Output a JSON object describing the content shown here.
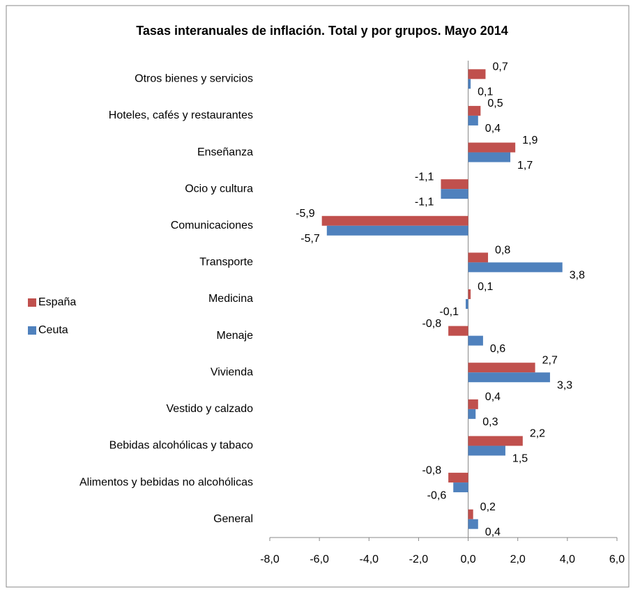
{
  "chart_data": {
    "type": "hbar",
    "title": "Tasas interanuales de inflación. Total y por grupos. Mayo 2014",
    "categories": [
      "Otros bienes y servicios",
      "Hoteles, cafés y restaurantes",
      "Enseñanza",
      "Ocio y cultura",
      "Comunicaciones",
      "Transporte",
      "Medicina",
      "Menaje",
      "Vivienda",
      "Vestido y calzado",
      "Bebidas alcohólicas y tabaco",
      "Alimentos y bebidas no alcohólicas",
      "General"
    ],
    "series": [
      {
        "name": "España",
        "color": "#c0504d",
        "values": [
          0.7,
          0.5,
          1.9,
          -1.1,
          -5.9,
          0.8,
          0.1,
          -0.8,
          2.7,
          0.4,
          2.2,
          -0.8,
          0.2
        ],
        "value_labels": [
          "0,7",
          "0,5",
          "1,9",
          "-1,1",
          "-5,9",
          "0,8",
          "0,1",
          "-0,8",
          "2,7",
          "0,4",
          "2,2",
          "-0,8",
          "0,2"
        ]
      },
      {
        "name": "Ceuta",
        "color": "#4f81bd",
        "values": [
          0.1,
          0.4,
          1.7,
          -1.1,
          -5.7,
          3.8,
          -0.1,
          0.6,
          3.3,
          0.3,
          1.5,
          -0.6,
          0.4
        ],
        "value_labels": [
          "0,1",
          "0,4",
          "1,7",
          "-1,1",
          "-5,7",
          "3,8",
          "-0,1",
          "0,6",
          "3,3",
          "0,3",
          "1,5",
          "-0,6",
          "0,4"
        ]
      }
    ],
    "xlim": [
      -8,
      6
    ],
    "xticks": [
      {
        "value": -8,
        "label": "-8,0"
      },
      {
        "value": -6,
        "label": "-6,0"
      },
      {
        "value": -4,
        "label": "-4,0"
      },
      {
        "value": -2,
        "label": "-2,0"
      },
      {
        "value": 0,
        "label": "0,0"
      },
      {
        "value": 2,
        "label": "2,0"
      },
      {
        "value": 4,
        "label": "4,0"
      },
      {
        "value": 6,
        "label": "6,0"
      }
    ],
    "legend": "left"
  }
}
